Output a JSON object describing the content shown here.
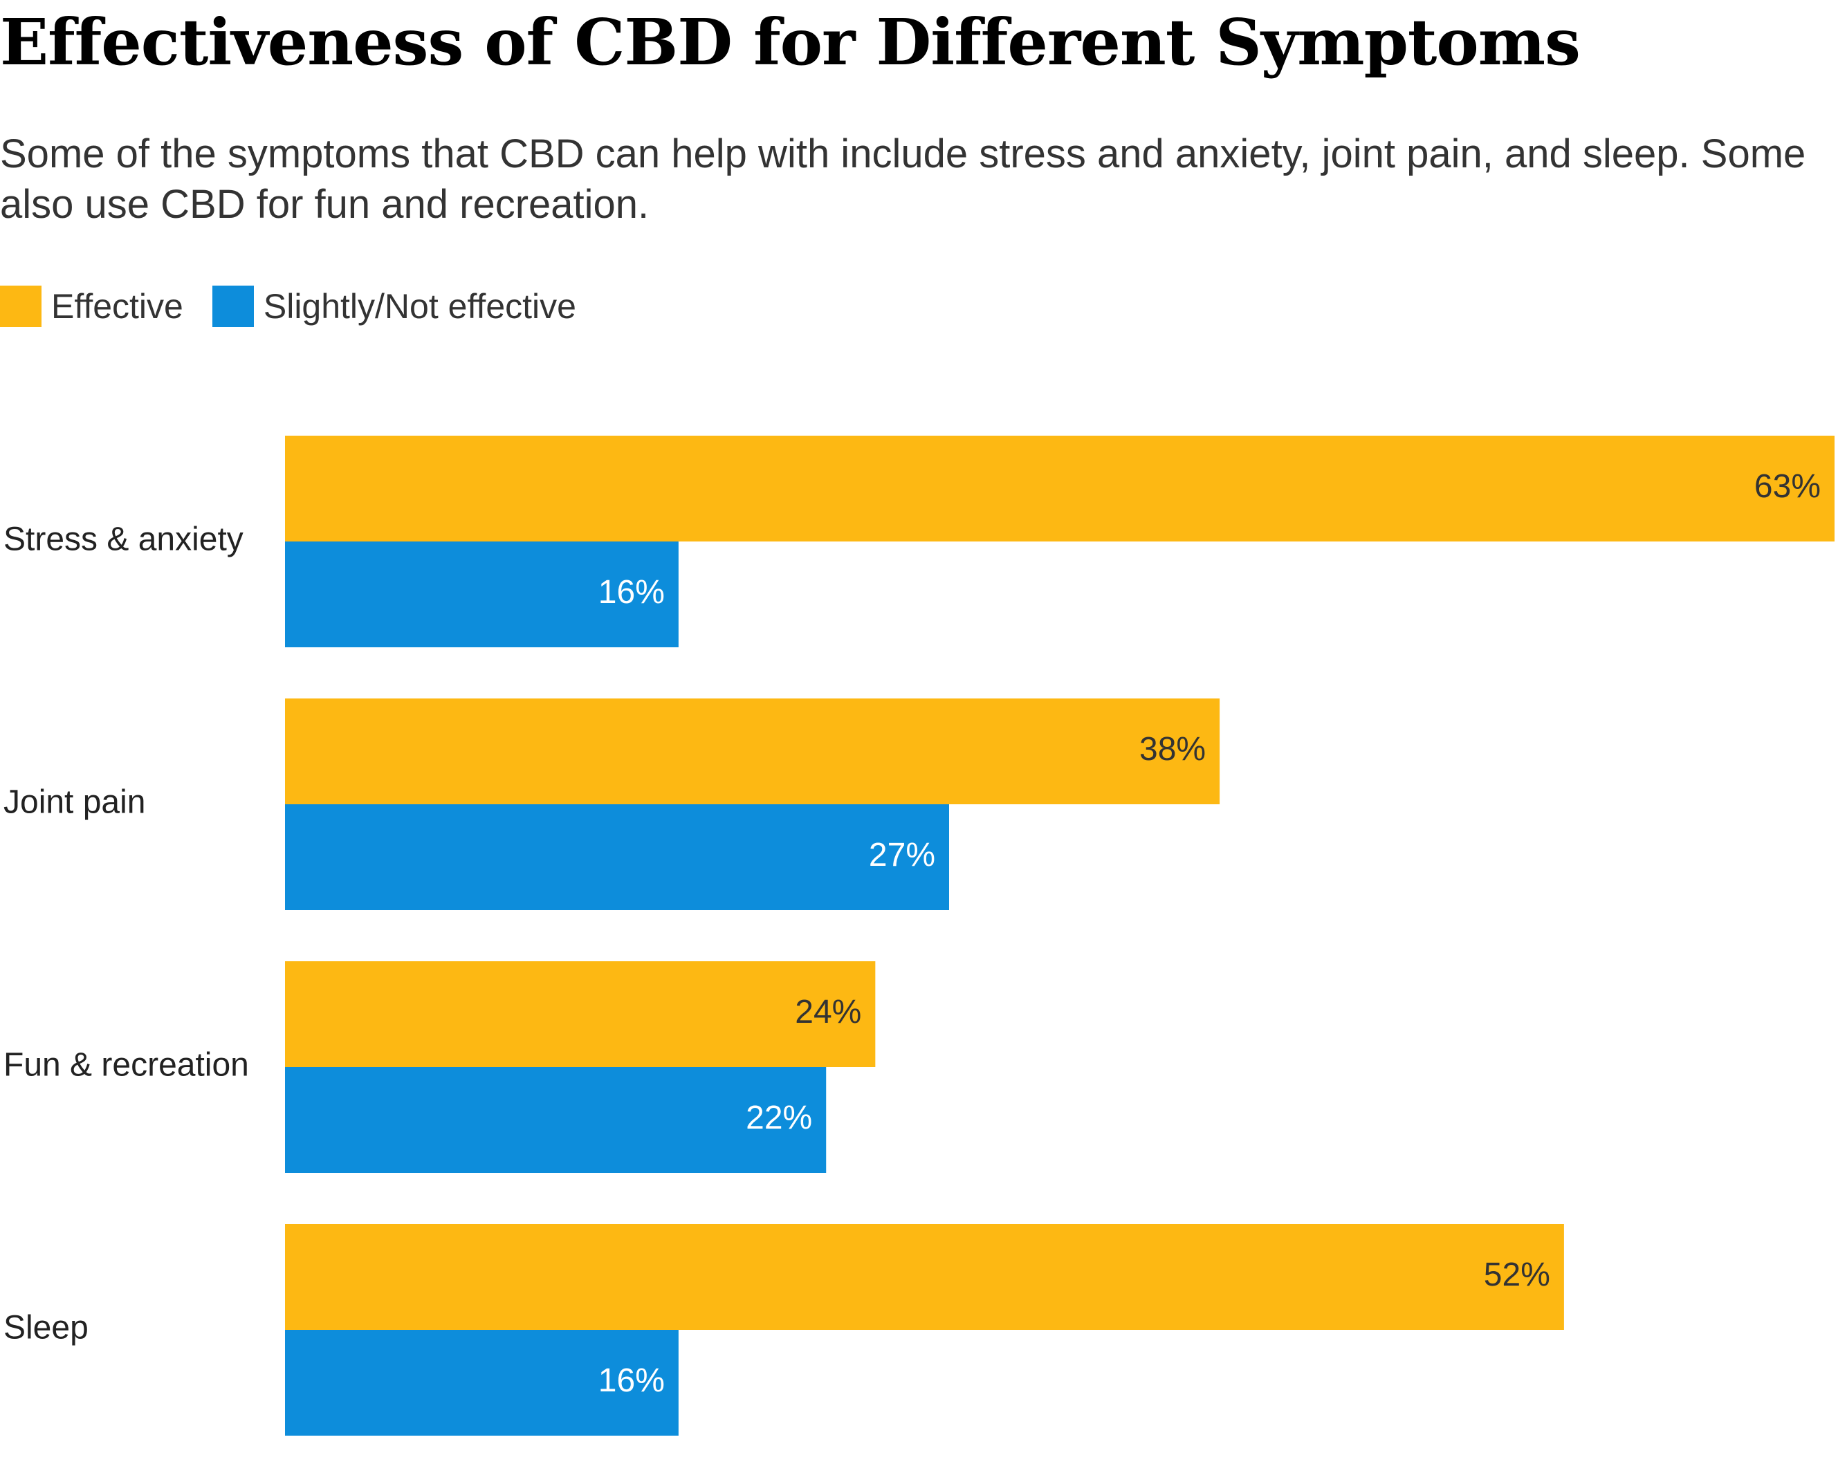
{
  "chart_data": {
    "type": "bar",
    "orientation": "horizontal",
    "title": "Effectiveness of CBD for Different Symptoms",
    "subtitle": "Some of the symptoms that CBD can help with include stress and anxiety, joint pain, and sleep. Some also use CBD for fun and recreation.",
    "categories": [
      "Stress & anxiety",
      "Joint pain",
      "Fun & recreation",
      "Sleep"
    ],
    "series": [
      {
        "name": "Effective",
        "values": [
          63,
          38,
          24,
          52
        ],
        "labels": [
          "63%",
          "38%",
          "24%",
          "52%"
        ],
        "color": "#FDB813",
        "label_color": "#333333"
      },
      {
        "name": "Slightly/Not effective",
        "values": [
          16,
          27,
          22,
          16
        ],
        "labels": [
          "16%",
          "27%",
          "22%",
          "16%"
        ],
        "color": "#0D8DDB",
        "label_color": "#ffffff"
      }
    ],
    "xlim": [
      0,
      63
    ],
    "xlabel": "",
    "ylabel": "",
    "grid": false,
    "legend": "top-left"
  }
}
